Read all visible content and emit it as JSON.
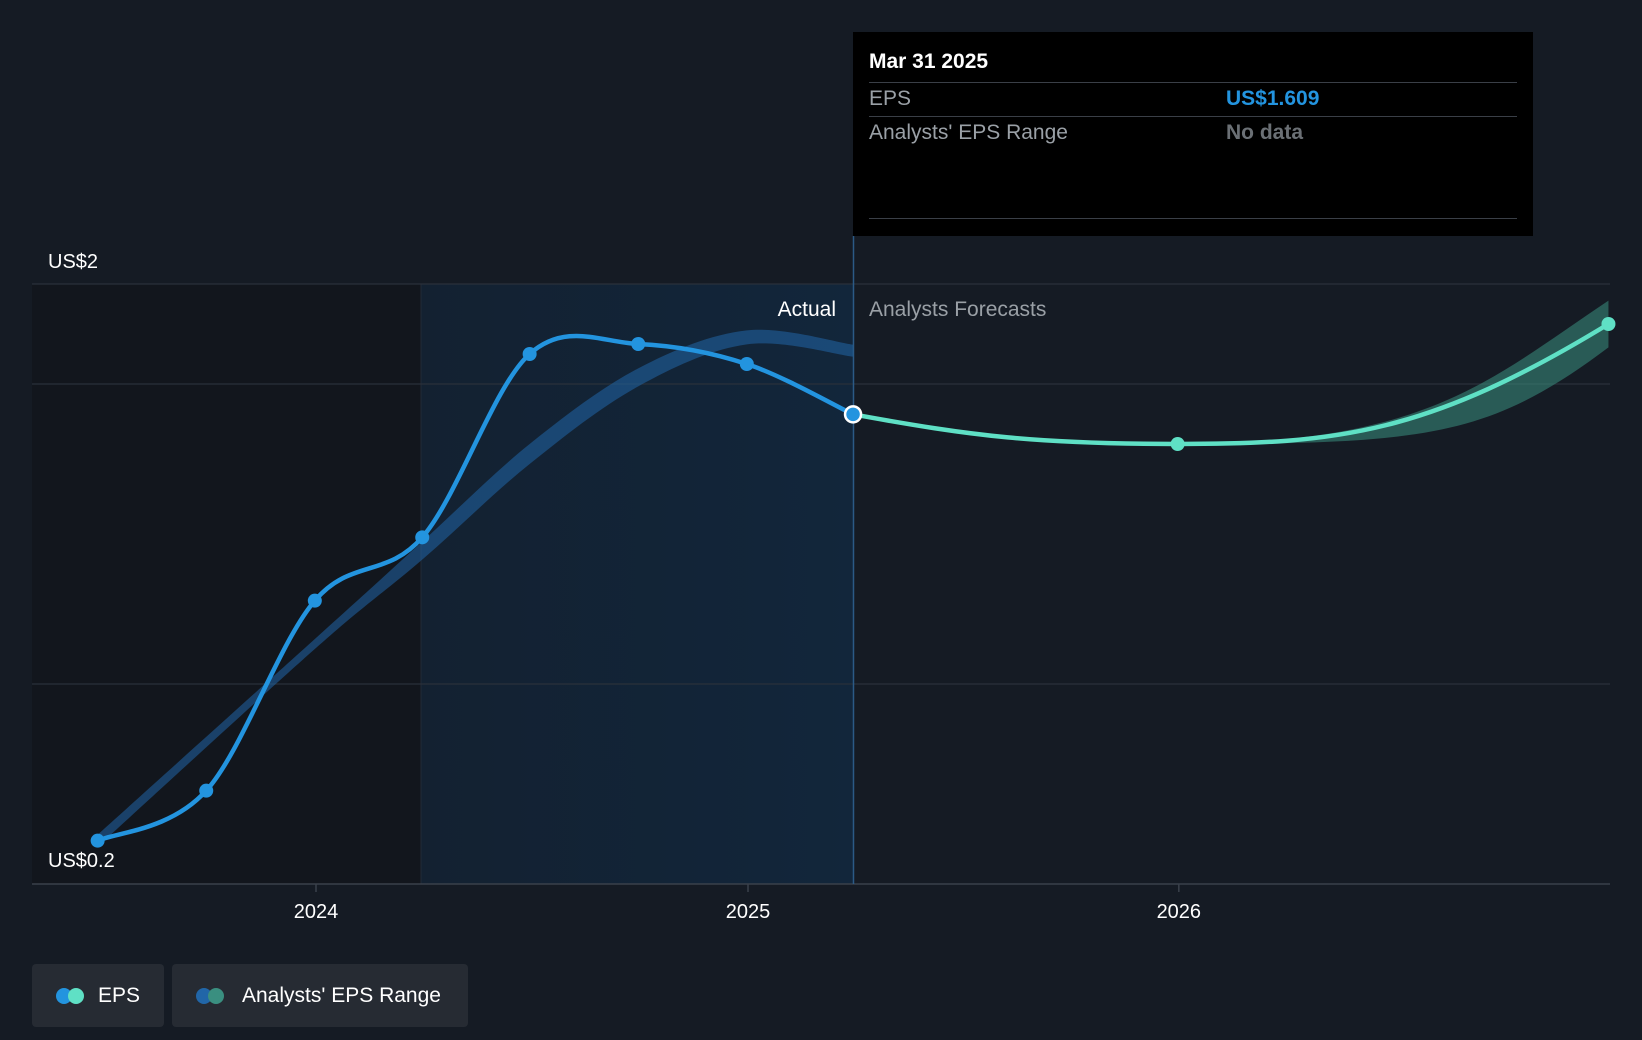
{
  "chart_data": {
    "type": "line",
    "y_axis": {
      "top_label": "US$2",
      "bottom_label": "US$0.2",
      "ylim": [
        0.2,
        2.0
      ]
    },
    "x_axis": {
      "tick_labels": [
        "2024",
        "2025",
        "2026"
      ]
    },
    "section_labels": {
      "actual": "Actual",
      "forecast": "Analysts Forecasts"
    },
    "series": [
      {
        "name": "EPS",
        "kind": "actual",
        "color": "#2394df",
        "points": [
          {
            "date": "2023-06-30",
            "y": 0.33
          },
          {
            "date": "2023-09-30",
            "y": 0.48
          },
          {
            "date": "2023-12-31",
            "y": 1.05
          },
          {
            "date": "2024-03-31",
            "y": 1.24
          },
          {
            "date": "2024-06-30",
            "y": 1.79
          },
          {
            "date": "2024-09-30",
            "y": 1.82
          },
          {
            "date": "2024-12-31",
            "y": 1.76
          },
          {
            "date": "2025-03-31",
            "y": 1.609
          }
        ]
      },
      {
        "name": "EPS",
        "kind": "forecast",
        "color": "#5fe0c5",
        "points": [
          {
            "date": "2025-03-31",
            "y": 1.609
          },
          {
            "date": "2025-12-31",
            "y": 1.52
          },
          {
            "date": "2026-12-31",
            "y": 1.88
          }
        ]
      },
      {
        "name": "Analysts' EPS Range",
        "kind": "historic-trend-band",
        "color": "#2166a8",
        "points": [
          {
            "date": "2023-06-30",
            "y": 0.33
          },
          {
            "date": "2023-12-31",
            "y": 0.92
          },
          {
            "date": "2024-03-31",
            "y": 1.2
          },
          {
            "date": "2024-06-30",
            "y": 1.49
          },
          {
            "date": "2024-09-30",
            "y": 1.72
          },
          {
            "date": "2024-12-31",
            "y": 1.84
          },
          {
            "date": "2025-03-31",
            "y": 1.8
          }
        ]
      },
      {
        "name": "Analysts' EPS Range",
        "kind": "forecast-range-band",
        "color": "#3a8f80",
        "low": [
          {
            "date": "2025-12-31",
            "y": 1.52
          },
          {
            "date": "2026-12-31",
            "y": 1.81
          }
        ],
        "high": [
          {
            "date": "2025-12-31",
            "y": 1.52
          },
          {
            "date": "2026-12-31",
            "y": 1.95
          }
        ]
      }
    ],
    "highlight": {
      "date": "2025-03-31",
      "y": 1.609
    }
  },
  "tooltip": {
    "date": "Mar 31 2025",
    "rows": [
      {
        "label": "EPS",
        "value": "US$1.609",
        "value_color": "#2394df"
      },
      {
        "label": "Analysts' EPS Range",
        "value": "No data",
        "value_color": "#6b7075"
      }
    ]
  },
  "legend": [
    {
      "label": "EPS",
      "colors": [
        "#2394df",
        "#5fe0c5"
      ]
    },
    {
      "label": "Analysts' EPS Range",
      "colors": [
        "#2166a8",
        "#3a8f80"
      ]
    }
  ]
}
